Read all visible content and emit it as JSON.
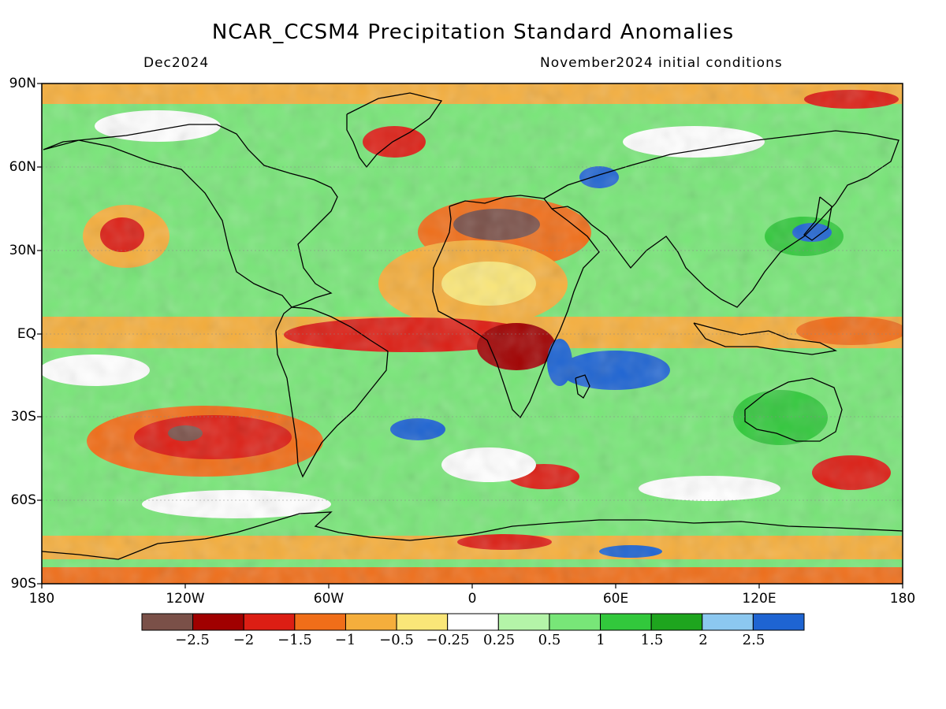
{
  "title": "NCAR_CCSM4 Precipitation Standard Anomalies",
  "valid_month": "Dec2024",
  "init_note": "November2024 initial conditions",
  "lat_labels": [
    "90N",
    "60N",
    "30N",
    "EQ",
    "30S",
    "60S",
    "90S"
  ],
  "lon_labels": [
    "180",
    "120W",
    "60W",
    "0",
    "60E",
    "120E",
    "180"
  ],
  "colorbar": {
    "colors": [
      "#7a5048",
      "#a00000",
      "#dc1e14",
      "#f06e19",
      "#f5ae3c",
      "#fae678",
      "#ffffff",
      "#b4f4a8",
      "#78e678",
      "#32c83c",
      "#1ea51e",
      "#8cc8f0",
      "#1e64d2"
    ],
    "labels": [
      "−2.5",
      "−2",
      "−1.5",
      "−1",
      "−0.5",
      "−0.25",
      "0.25",
      "0.5",
      "1",
      "1.5",
      "2",
      "2.5"
    ]
  }
}
